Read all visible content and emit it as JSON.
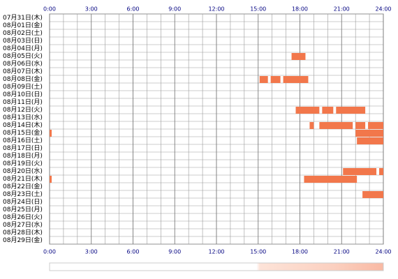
{
  "chart_data": {
    "type": "timeline",
    "categories": [
      "07月31日(木)",
      "08月01日(金)",
      "08月02日(土)",
      "08月03日(日)",
      "08月04日(月)",
      "08月05日(火)",
      "08月06日(水)",
      "08月07日(木)",
      "08月08日(金)",
      "08月09日(土)",
      "08月10日(日)",
      "08月11日(月)",
      "08月12日(火)",
      "08月13日(水)",
      "08月14日(木)",
      "08月15日(金)",
      "08月16日(土)",
      "08月17日(日)",
      "08月18日(月)",
      "08月19日(火)",
      "08月20日(水)",
      "08月21日(木)",
      "08月22日(金)",
      "08月23日(土)",
      "08月24日(日)",
      "08月25日(月)",
      "08月26日(火)",
      "08月27日(水)",
      "08月28日(木)",
      "08月29日(金)"
    ],
    "ranges": [
      [],
      [],
      [],
      [],
      [],
      [
        [
          17.4,
          18.4
        ]
      ],
      [],
      [],
      [
        [
          15.1,
          15.7
        ],
        [
          15.9,
          16.6
        ],
        [
          16.8,
          18.6
        ]
      ],
      [],
      [],
      [],
      [
        [
          17.7,
          19.4
        ],
        [
          19.6,
          20.4
        ],
        [
          20.6,
          22.7
        ]
      ],
      [],
      [
        [
          18.7,
          19.0
        ],
        [
          19.4,
          21.8
        ],
        [
          22.0,
          22.7
        ],
        [
          22.9,
          24
        ]
      ],
      [
        [
          0,
          0.15
        ],
        [
          22.0,
          24
        ]
      ],
      [
        [
          22.1,
          24
        ]
      ],
      [],
      [],
      [],
      [
        [
          21.1,
          23.5
        ],
        [
          23.7,
          24
        ]
      ],
      [
        [
          0,
          0.15
        ],
        [
          18.3,
          22.1
        ]
      ],
      [],
      [
        [
          22.5,
          24
        ]
      ],
      [],
      [],
      [],
      [],
      [],
      []
    ],
    "color": "#f2774b",
    "xlim": [
      0,
      24
    ],
    "xticks": [
      {
        "value": 0,
        "label": "0:00"
      },
      {
        "value": 3,
        "label": "3:00"
      },
      {
        "value": 6,
        "label": "6:00"
      },
      {
        "value": 9,
        "label": "9:00"
      },
      {
        "value": 12,
        "label": "12:00"
      },
      {
        "value": 15,
        "label": "15:00"
      },
      {
        "value": 18,
        "label": "18:00"
      },
      {
        "value": 21,
        "label": "21:00"
      },
      {
        "value": 24,
        "label": "24:00"
      }
    ],
    "grid": true
  }
}
